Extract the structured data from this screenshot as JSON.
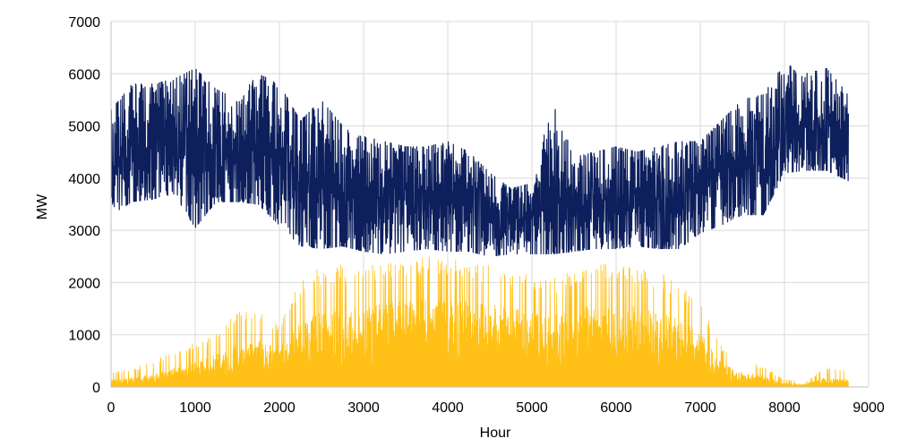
{
  "chart_data": {
    "type": "line",
    "title": "",
    "xlabel": "Hour",
    "ylabel": "MW",
    "xlim": [
      0,
      9000
    ],
    "ylim": [
      0,
      7000
    ],
    "xticks": [
      0,
      1000,
      2000,
      3000,
      4000,
      5000,
      6000,
      7000,
      8000,
      9000
    ],
    "yticks": [
      0,
      1000,
      2000,
      3000,
      4000,
      5000,
      6000,
      7000
    ],
    "grid": true,
    "legend": "none",
    "hours": 8760,
    "series": [
      {
        "color": "#0d1f5c",
        "envelope_x": [
          0,
          250,
          500,
          750,
          1000,
          1250,
          1500,
          1750,
          2000,
          2250,
          2500,
          2750,
          3000,
          3250,
          3500,
          3750,
          4000,
          4250,
          4500,
          4750,
          5000,
          5250,
          5500,
          5750,
          6000,
          6250,
          6500,
          6750,
          7000,
          7250,
          7500,
          7750,
          8000,
          8250,
          8500,
          8760
        ],
        "min": [
          3300,
          3550,
          3600,
          3700,
          3050,
          3550,
          3550,
          3500,
          3100,
          2700,
          2650,
          2700,
          2600,
          2550,
          2600,
          2650,
          2600,
          2600,
          2500,
          2550,
          2550,
          2550,
          2600,
          2650,
          2650,
          2700,
          2650,
          2650,
          2950,
          3100,
          3300,
          3300,
          4100,
          4150,
          4150,
          3950
        ],
        "max": [
          5300,
          5800,
          5800,
          5900,
          6100,
          5700,
          5500,
          6000,
          5800,
          5100,
          5500,
          5000,
          4800,
          4700,
          4600,
          4600,
          4700,
          4500,
          4100,
          3800,
          3900,
          5500,
          4400,
          4500,
          4600,
          4500,
          4600,
          4700,
          4700,
          5100,
          5500,
          5600,
          6200,
          6000,
          6100,
          5600
        ],
        "mean": [
          4300,
          4650,
          4700,
          4750,
          4650,
          4600,
          4400,
          4500,
          4400,
          3850,
          3900,
          3850,
          3700,
          3650,
          3600,
          3600,
          3650,
          3550,
          3300,
          3200,
          3200,
          3600,
          3450,
          3550,
          3600,
          3550,
          3600,
          3650,
          3800,
          4100,
          4300,
          4400,
          4900,
          4900,
          4950,
          4700
        ]
      },
      {
        "color": "#ffc117",
        "envelope_x": [
          0,
          250,
          500,
          750,
          1000,
          1250,
          1500,
          1750,
          2000,
          2250,
          2500,
          2750,
          3000,
          3250,
          3500,
          3750,
          4000,
          4250,
          4500,
          4750,
          5000,
          5250,
          5500,
          5750,
          6000,
          6250,
          6500,
          6750,
          7000,
          7250,
          7500,
          7750,
          8000,
          8250,
          8500,
          8760
        ],
        "min": [
          0,
          0,
          0,
          0,
          0,
          0,
          0,
          0,
          0,
          0,
          0,
          0,
          0,
          0,
          0,
          0,
          0,
          0,
          0,
          0,
          0,
          0,
          0,
          0,
          0,
          0,
          0,
          0,
          0,
          0,
          0,
          0,
          0,
          0,
          0,
          0
        ],
        "max": [
          300,
          350,
          500,
          700,
          850,
          1100,
          1450,
          1500,
          1200,
          2100,
          2300,
          2350,
          2300,
          2400,
          2450,
          2550,
          2500,
          2400,
          2350,
          2250,
          2200,
          2100,
          2250,
          2350,
          2450,
          2300,
          2200,
          2000,
          1700,
          800,
          500,
          400,
          150,
          100,
          400,
          300
        ],
        "mean": [
          90,
          110,
          160,
          230,
          300,
          400,
          520,
          560,
          480,
          800,
          900,
          950,
          950,
          1000,
          1050,
          1100,
          1080,
          1050,
          1000,
          950,
          950,
          900,
          950,
          1000,
          1030,
          950,
          900,
          820,
          650,
          300,
          180,
          140,
          50,
          40,
          120,
          90
        ]
      }
    ]
  }
}
